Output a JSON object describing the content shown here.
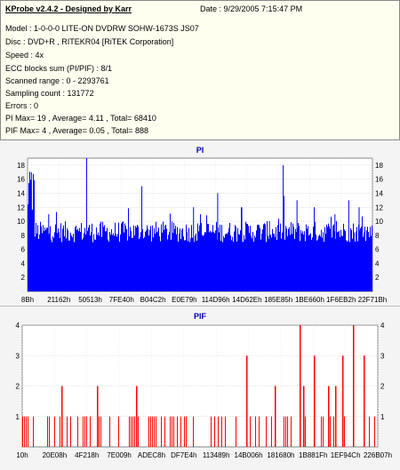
{
  "header": {
    "title": "KProbe v2.4.2 - Designed by Karr",
    "date": "Date : 9/29/2005 7:15:47 PM",
    "lines": [
      "Model : 1-0-0-0 LITE-ON DVDRW SOHW-1673S JS07",
      "Disc : DVD+R , RITEKR04 [RiTEK Corporation]",
      "Speed : 4x",
      "ECC blocks sum (PI/PIF) : 8/1",
      "Scanned range : 0 - 2293761",
      "Sampling count : 131772",
      "Errors : 0",
      "PI Max= 19 , Average= 4.11 , Total= 68410",
      "PIF Max= 4 , Average= 0.05 , Total= 888"
    ]
  },
  "colors": {
    "pi_series": "#0000ff",
    "pif_series": "#ff0000",
    "title": "#0000aa",
    "plot_bg": "#ffffff"
  },
  "chart_data": [
    {
      "type": "bar",
      "title": "PI",
      "ylim": [
        0,
        19
      ],
      "yticks": [
        2,
        4,
        6,
        8,
        10,
        12,
        14,
        16,
        18
      ],
      "grid": true,
      "xticklabels": [
        "8Bh",
        "21162h",
        "50513h",
        "7FE40h",
        "B04C2h",
        "E0E79h",
        "114D96h",
        "14D62Eh",
        "185E85h",
        "1BE660h",
        "1F6EB2h",
        "22F71Bh"
      ],
      "series": [
        {
          "name": "PI",
          "baseline": 7,
          "typical_max": 10,
          "peaks": [
            19,
            17,
            11,
            15,
            12,
            14,
            12,
            18,
            13,
            12,
            11,
            13,
            12,
            11,
            10
          ]
        }
      ]
    },
    {
      "type": "bar",
      "title": "PIF",
      "ylim": [
        0,
        4
      ],
      "yticks": [
        1,
        2,
        3,
        4
      ],
      "grid": true,
      "xticklabels": [
        "10h",
        "20E08h",
        "4F218h",
        "7E009h",
        "ADEC8h",
        "DF7E4h",
        "113489h",
        "14B006h",
        "181680h",
        "1B881Fh",
        "1EF94Ch",
        "226B07h"
      ],
      "series": [
        {
          "name": "PIF",
          "max": 4,
          "spikes_4": [
            0.78,
            0.93
          ],
          "spikes_3": [
            0.63,
            0.82,
            0.9,
            0.96
          ],
          "spikes_2": [
            0.11,
            0.21,
            0.32,
            0.71,
            0.79,
            0.86,
            0.88
          ]
        }
      ]
    }
  ]
}
